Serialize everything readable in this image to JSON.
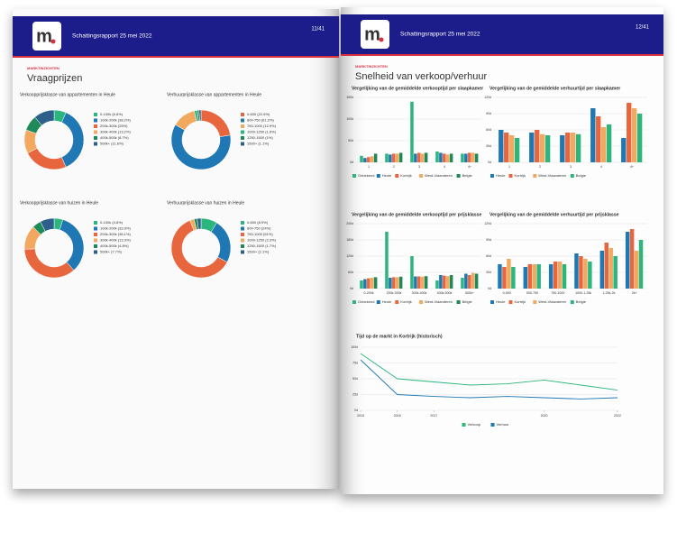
{
  "pages": [
    {
      "logo": "m",
      "header": "Schattingsrapport 25 mei 2022",
      "page_number": "11/41",
      "section": "MARKTINZICHTEN",
      "title": "Vraagprijzen",
      "charts": [
        {
          "type": "pie",
          "title": "Verkoopprijsklasse van appartementen in Heule",
          "categories": [
            "0-100k (6.8%)",
            "100k-200k (38.2%)",
            "200k-300k (25%)",
            "300k-400k (13.2%)",
            "400k-500k (8.7%)",
            "500k+ (11.6%)"
          ],
          "values": [
            6.8,
            38.2,
            25,
            13.2,
            8.7,
            11.6
          ],
          "colors": [
            "#2cb67d",
            "#1f78b4",
            "#e8663d",
            "#f2a85e",
            "#1e8a5a",
            "#2c5f8a"
          ]
        },
        {
          "type": "pie",
          "title": "Verhuurprijsklasse van appartementen in Heule",
          "categories": [
            "0-600 (22.6%)",
            "600-750 (61.2%)",
            "750-1000 (12.9%)",
            "1000-1250 (1.6%)",
            "1250-1500 (1%)",
            "1500+ (1.1%)"
          ],
          "values": [
            22.6,
            61.2,
            12.9,
            1.6,
            1,
            1.1
          ],
          "colors": [
            "#e8663d",
            "#1f78b4",
            "#f2a85e",
            "#2cb67d",
            "#1e8a5a",
            "#2c5f8a"
          ]
        },
        {
          "type": "pie",
          "title": "Verkoopprijsklasse van huizen in Heule",
          "categories": [
            "0-100k (4.8%)",
            "100k-200k (33.9%)",
            "200k-300k (36.1%)",
            "300k-400k (13.3%)",
            "400k-500k (4.8%)",
            "500k+ (7.7%)"
          ],
          "values": [
            4.8,
            33.9,
            36.1,
            13.3,
            4.8,
            7.7
          ],
          "colors": [
            "#2cb67d",
            "#1f78b4",
            "#e8663d",
            "#f2a85e",
            "#1e8a5a",
            "#2c5f8a"
          ]
        },
        {
          "type": "pie",
          "title": "Verhuurprijsklasse van huizen in Heule",
          "categories": [
            "0-600 (8.9%)",
            "600-750 (24%)",
            "750-1000 (61%)",
            "1000-1250 (2.3%)",
            "1250-1500 (1.7%)",
            "1500+ (2.1%)"
          ],
          "values": [
            8.9,
            24,
            61,
            2.3,
            1.7,
            2.1
          ],
          "colors": [
            "#2cb67d",
            "#1f78b4",
            "#e8663d",
            "#f2a85e",
            "#1e8a5a",
            "#2c5f8a"
          ]
        }
      ]
    },
    {
      "logo": "m",
      "header": "Schattingsrapport 25 mei 2022",
      "page_number": "12/41",
      "section": "MARKTINZICHTEN",
      "title": "Snelheid van verkoop/verhuur",
      "charts": [
        {
          "type": "bar",
          "title": "Vergelijking van de gemiddelde verkooptijd per slaapkamer",
          "categories": [
            "1",
            "2",
            "3",
            "4",
            "4+"
          ],
          "series": [
            {
              "name": "Onbekend",
              "color": "#2cb67d",
              "values": [
                15,
                20,
                140,
                25,
                20
              ]
            },
            {
              "name": "Heule",
              "color": "#1f78b4",
              "values": [
                10,
                18,
                20,
                22,
                20
              ]
            },
            {
              "name": "Kortrijk",
              "color": "#e8663d",
              "values": [
                12,
                20,
                22,
                20,
                22
              ]
            },
            {
              "name": "West-Vlaanderen",
              "color": "#f2a85e",
              "values": [
                14,
                20,
                20,
                18,
                22
              ]
            },
            {
              "name": "Belgie",
              "color": "#1e8a5a",
              "values": [
                20,
                22,
                22,
                20,
                20
              ]
            }
          ],
          "ylim": [
            0,
            150
          ],
          "yticks": [
            {
              "value": 0,
              "label": "0d"
            },
            {
              "value": 50,
              "label": "50d"
            },
            {
              "value": 100,
              "label": "100d"
            },
            {
              "value": 150,
              "label": "150d"
            }
          ]
        },
        {
          "type": "bar",
          "title": "Vergelijking van de gemiddelde verhuurtijd per slaapkamer",
          "categories": [
            "1",
            "2",
            "3",
            "4",
            "4+"
          ],
          "series": [
            {
              "name": "Heule",
              "color": "#1f78b4",
              "values": [
                60,
                55,
                50,
                100,
                45
              ]
            },
            {
              "name": "Kortrijk",
              "color": "#e8663d",
              "values": [
                55,
                60,
                55,
                85,
                110
              ]
            },
            {
              "name": "West-Vlaanderen",
              "color": "#f2a85e",
              "values": [
                50,
                52,
                55,
                65,
                100
              ]
            },
            {
              "name": "Belgie",
              "color": "#2cb67d",
              "values": [
                45,
                50,
                52,
                70,
                90
              ]
            }
          ],
          "ylim": [
            0,
            120
          ],
          "yticks": [
            {
              "value": 0,
              "label": "0d"
            },
            {
              "value": 30,
              "label": "30d"
            },
            {
              "value": 60,
              "label": "60d"
            },
            {
              "value": 90,
              "label": "90d"
            },
            {
              "value": 120,
              "label": "120d"
            }
          ]
        },
        {
          "type": "bar",
          "title": "Vergelijking van de gemiddelde verkooptijd per prijsklasse",
          "categories": [
            "0-200k",
            "200k-300k",
            "300k-400k",
            "400k-500k",
            "500k+"
          ],
          "series": [
            {
              "name": "Onbekend",
              "color": "#2cb67d",
              "values": [
                30,
                210,
                120,
                30,
                40
              ]
            },
            {
              "name": "Heule",
              "color": "#1f78b4",
              "values": [
                35,
                40,
                45,
                50,
                55
              ]
            },
            {
              "name": "Kortrijk",
              "color": "#e8663d",
              "values": [
                38,
                42,
                45,
                48,
                50
              ]
            },
            {
              "name": "West-Vlaanderen",
              "color": "#f2a85e",
              "values": [
                40,
                42,
                44,
                46,
                58
              ]
            },
            {
              "name": "Belgie",
              "color": "#1e8a5a",
              "values": [
                42,
                44,
                46,
                50,
                55
              ]
            }
          ],
          "ylim": [
            0,
            240
          ],
          "yticks": [
            {
              "value": 0,
              "label": "0d"
            },
            {
              "value": 60,
              "label": "60d"
            },
            {
              "value": 120,
              "label": "120d"
            },
            {
              "value": 180,
              "label": "180d"
            },
            {
              "value": 240,
              "label": "240d"
            }
          ]
        },
        {
          "type": "bar",
          "title": "Vergelijking van de gemiddelde verhuurtijd per prijsklasse",
          "categories": [
            "0-500",
            "500-750",
            "750-1000",
            "1000-1.25k",
            "1.25k-2k",
            "2k+"
          ],
          "series": [
            {
              "name": "Heule",
              "color": "#1f78b4",
              "values": [
                45,
                40,
                45,
                65,
                70,
                105
              ]
            },
            {
              "name": "Kortrijk",
              "color": "#e8663d",
              "values": [
                40,
                45,
                50,
                60,
                85,
                110
              ]
            },
            {
              "name": "West-Vlaanderen",
              "color": "#f2a85e",
              "values": [
                55,
                45,
                50,
                55,
                75,
                70
              ]
            },
            {
              "name": "Belgie",
              "color": "#2cb67d",
              "values": [
                40,
                45,
                45,
                50,
                60,
                90
              ]
            }
          ],
          "ylim": [
            0,
            120
          ],
          "yticks": [
            {
              "value": 0,
              "label": "0d"
            },
            {
              "value": 30,
              "label": "30d"
            },
            {
              "value": 60,
              "label": "60d"
            },
            {
              "value": 90,
              "label": "90d"
            },
            {
              "value": 120,
              "label": "120d"
            }
          ]
        },
        {
          "type": "line",
          "title": "Tijd op de markt in Kortrijk (historisch)",
          "x": [
            2015,
            2016,
            2017,
            2018,
            2019,
            2020,
            2021,
            2022
          ],
          "series": [
            {
              "name": "Verkoop",
              "color": "#2cb67d",
              "values": [
                90,
                50,
                45,
                40,
                42,
                48,
                40,
                32
              ]
            },
            {
              "name": "Verhuur",
              "color": "#1f78b4",
              "values": [
                80,
                25,
                22,
                20,
                22,
                20,
                18,
                20
              ]
            }
          ],
          "xlim": [
            2015,
            2022
          ],
          "xticks": [
            2015,
            2016,
            2017,
            2020,
            2022
          ],
          "ylim": [
            0,
            100
          ],
          "yticks": [
            {
              "value": 0,
              "label": "0d"
            },
            {
              "value": 25,
              "label": "25d"
            },
            {
              "value": 50,
              "label": "50d"
            },
            {
              "value": 75,
              "label": "75d"
            },
            {
              "value": 100,
              "label": "100d"
            }
          ]
        }
      ]
    }
  ]
}
